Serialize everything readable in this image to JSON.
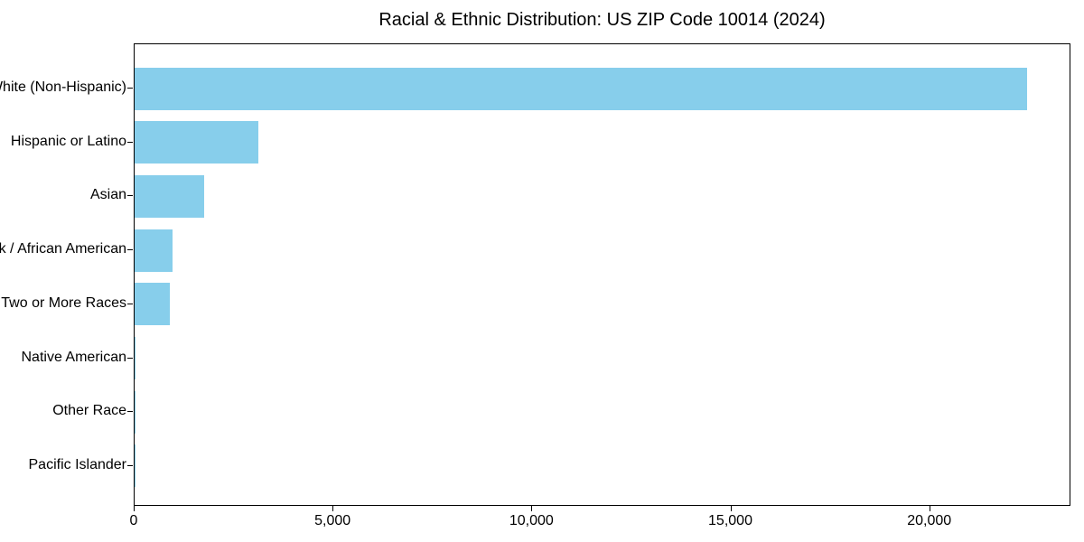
{
  "chart_data": {
    "type": "bar",
    "orientation": "horizontal",
    "title": "Racial & Ethnic Distribution: US ZIP Code 10014 (2024)",
    "categories": [
      "White (Non-Hispanic)",
      "Hispanic or Latino",
      "Asian",
      "Black / African American",
      "Two or More Races",
      "Native American",
      "Other Race",
      "Pacific Islander"
    ],
    "values": [
      22430,
      3120,
      1740,
      965,
      890,
      30,
      25,
      10
    ],
    "xlabel": "",
    "ylabel": "",
    "xlim": [
      0,
      23550
    ],
    "xticks": [
      0,
      5000,
      10000,
      15000,
      20000
    ],
    "xtick_labels": [
      "0",
      "5,000",
      "10,000",
      "15,000",
      "20,000"
    ],
    "bar_color": "#87CEEB",
    "background_color": "#ffffff",
    "text_color": "#000000",
    "grid": false,
    "legend": null,
    "bars_ordered_top_to_bottom": true
  }
}
